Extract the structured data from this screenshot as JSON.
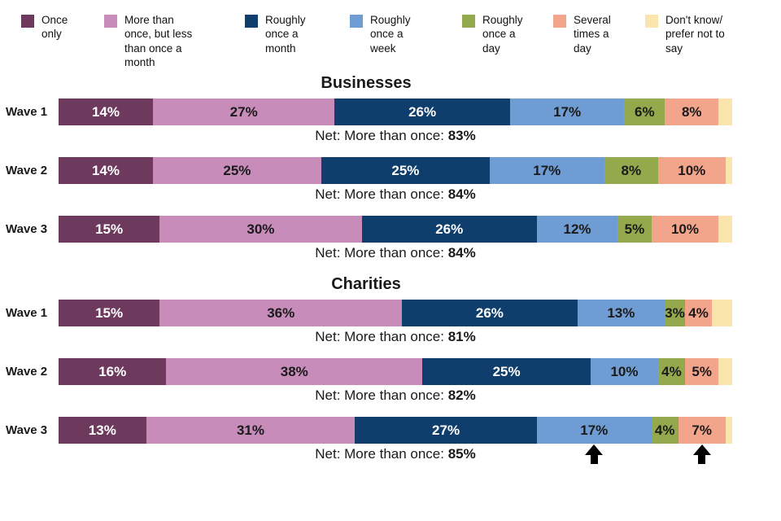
{
  "legend": {
    "items": [
      {
        "label": "Once only",
        "color": "#6d3a5e",
        "text_color": "#ffffff"
      },
      {
        "label": "More than once, but less than once a month",
        "color": "#c78cba",
        "text_color": "#1a1a1a"
      },
      {
        "label": "Roughly once a month",
        "color": "#0f3e6c",
        "text_color": "#ffffff"
      },
      {
        "label": "Roughly once a week",
        "color": "#6f9cd3",
        "text_color": "#1a1a1a"
      },
      {
        "label": "Roughly once a day",
        "color": "#93a94c",
        "text_color": "#1a1a1a"
      },
      {
        "label": "Several times a day",
        "color": "#f3a58c",
        "text_color": "#1a1a1a"
      },
      {
        "label": "Don't know/ prefer not to say",
        "color": "#fae6ad",
        "text_color": "#1a1a1a"
      }
    ]
  },
  "chart_data": {
    "type": "bar",
    "stacked": true,
    "orientation": "horizontal",
    "unit": "%",
    "axis_range": [
      0,
      100
    ],
    "categories": [
      "Once only",
      "More than once, but less than once a month",
      "Roughly once a month",
      "Roughly once a week",
      "Roughly once a day",
      "Several times a day",
      "Don't know/ prefer not to say"
    ],
    "colors": [
      "#6d3a5e",
      "#c78cba",
      "#0f3e6c",
      "#6f9cd3",
      "#93a94c",
      "#f3a58c",
      "#fae6ad"
    ],
    "unlabeled_category_index": 6,
    "sections": [
      {
        "title": "Businesses",
        "rows": [
          {
            "label": "Wave 1",
            "values": [
              14,
              27,
              26,
              17,
              6,
              8,
              2
            ],
            "net_label": "Net: More than once:",
            "net_value": "83%",
            "arrows": []
          },
          {
            "label": "Wave 2",
            "values": [
              14,
              25,
              25,
              17,
              8,
              10,
              1
            ],
            "net_label": "Net: More than once:",
            "net_value": "84%",
            "arrows": []
          },
          {
            "label": "Wave 3",
            "values": [
              15,
              30,
              26,
              12,
              5,
              10,
              2
            ],
            "net_label": "Net: More than once:",
            "net_value": "84%",
            "arrows": []
          }
        ]
      },
      {
        "title": "Charities",
        "rows": [
          {
            "label": "Wave 1",
            "values": [
              15,
              36,
              26,
              13,
              3,
              4,
              3
            ],
            "net_label": "Net: More than once:",
            "net_value": "81%",
            "arrows": []
          },
          {
            "label": "Wave 2",
            "values": [
              16,
              38,
              25,
              10,
              4,
              5,
              2
            ],
            "net_label": "Net: More than once:",
            "net_value": "82%",
            "arrows": []
          },
          {
            "label": "Wave 3",
            "values": [
              13,
              31,
              27,
              17,
              4,
              7,
              1
            ],
            "net_label": "Net: More than once:",
            "net_value": "85%",
            "arrows": [
              3,
              5
            ]
          }
        ]
      }
    ]
  }
}
